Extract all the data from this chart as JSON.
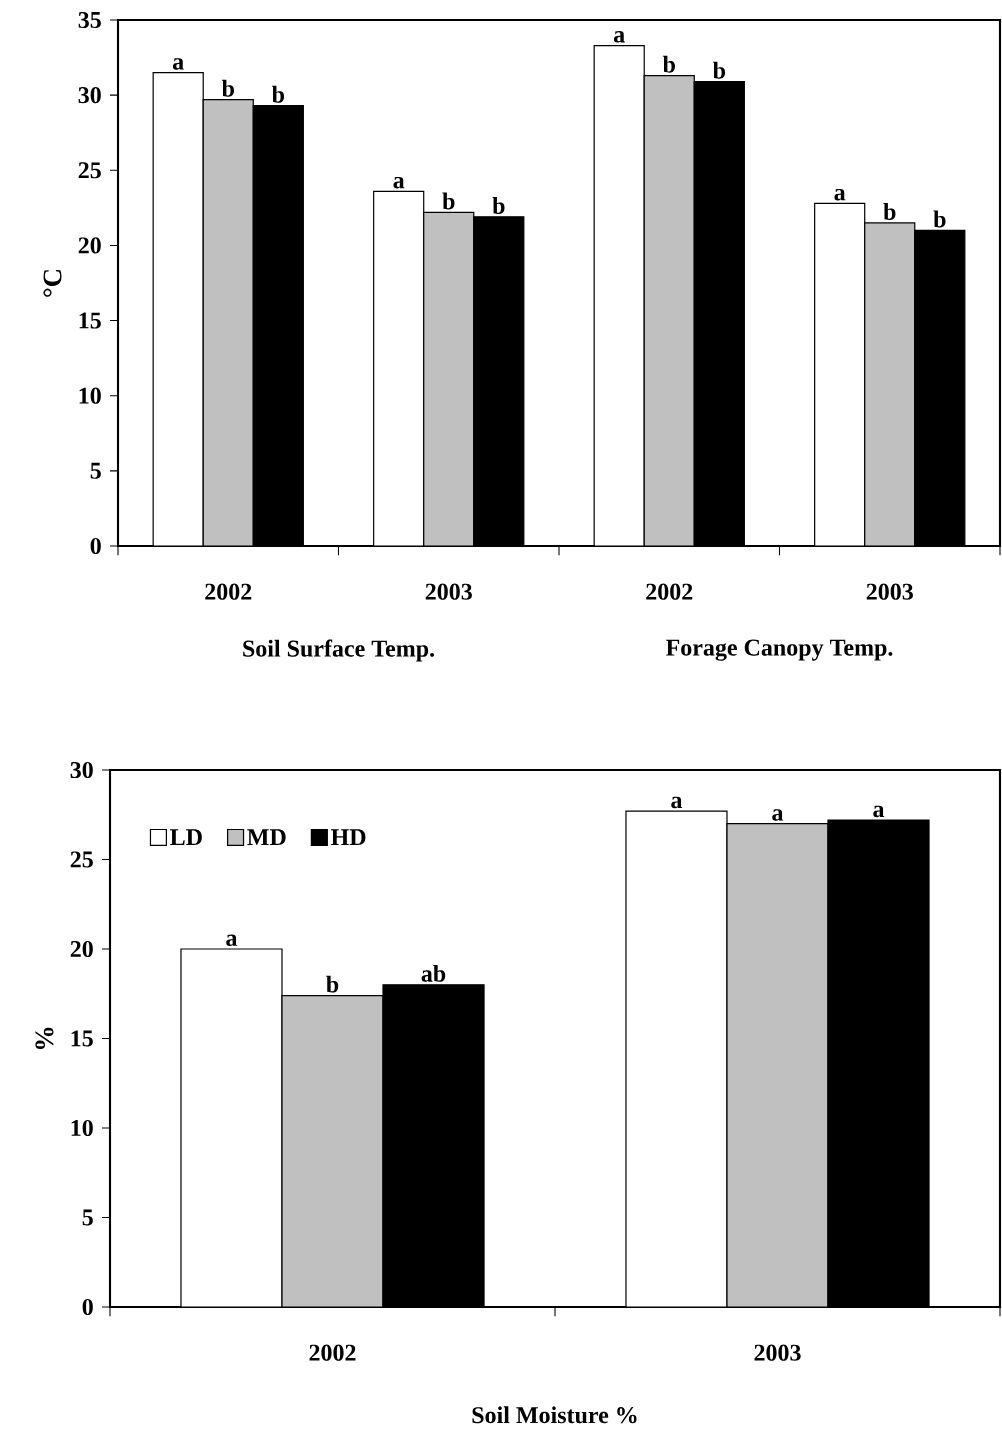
{
  "chart_data": [
    {
      "type": "bar",
      "categories": [
        "2002",
        "2003",
        "2002",
        "2003"
      ],
      "ylabel": "°C",
      "ylim": [
        0,
        35
      ],
      "yticks": [
        0,
        5,
        10,
        15,
        20,
        25,
        30,
        35
      ],
      "annotations": [
        "Soil Surface Temp.",
        "Forage Canopy Temp."
      ],
      "series": [
        {
          "color": "#ffffff",
          "values": [
            31.5,
            23.6,
            33.3,
            22.8
          ],
          "value_labels": [
            "a",
            "a",
            "a",
            "a"
          ]
        },
        {
          "color": "#c0c0c0",
          "values": [
            29.7,
            22.2,
            31.3,
            21.5
          ],
          "value_labels": [
            "b",
            "b",
            "b",
            "b"
          ]
        },
        {
          "color": "#000000",
          "values": [
            29.3,
            21.9,
            30.9,
            21.0
          ],
          "value_labels": [
            "b",
            "b",
            "b",
            "b"
          ]
        }
      ]
    },
    {
      "type": "bar",
      "categories": [
        "2002",
        "2003"
      ],
      "xlabel": "Soil Moisture %",
      "ylabel": "%",
      "ylim": [
        0,
        30
      ],
      "yticks": [
        0,
        5,
        10,
        15,
        20,
        25,
        30
      ],
      "legend": "top left",
      "series": [
        {
          "name": "LD",
          "color": "#ffffff",
          "values": [
            20.0,
            27.7
          ],
          "value_labels": [
            "a",
            "a"
          ]
        },
        {
          "name": "MD",
          "color": "#c0c0c0",
          "values": [
            17.4,
            27.0
          ],
          "value_labels": [
            "b",
            "a"
          ]
        },
        {
          "name": "HD",
          "color": "#000000",
          "values": [
            18.0,
            27.2
          ],
          "value_labels": [
            "ab",
            "a"
          ]
        }
      ]
    }
  ]
}
